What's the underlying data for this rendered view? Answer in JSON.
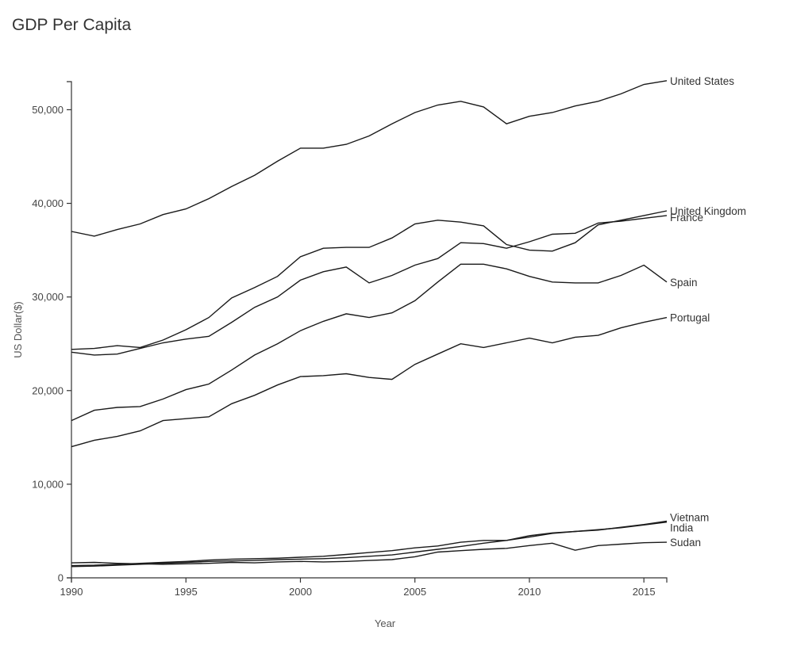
{
  "chart_data": {
    "type": "line",
    "title": "GDP Per Capita",
    "xlabel": "Year",
    "ylabel": "US Dollar($)",
    "xlim": [
      1990,
      2016
    ],
    "ylim": [
      0,
      53000
    ],
    "x_ticks": [
      "1990",
      "1995",
      "2000",
      "2005",
      "2010",
      "2015"
    ],
    "y_ticks": [
      "0",
      "10,000",
      "20,000",
      "30,000",
      "40,000",
      "50,000"
    ],
    "x": [
      1990,
      1991,
      1992,
      1993,
      1994,
      1995,
      1996,
      1997,
      1998,
      1999,
      2000,
      2001,
      2002,
      2003,
      2004,
      2005,
      2006,
      2007,
      2008,
      2009,
      2010,
      2011,
      2012,
      2013,
      2014,
      2015,
      2016
    ],
    "series": [
      {
        "name": "United States",
        "values": [
          37000,
          36500,
          37200,
          37800,
          38800,
          39400,
          40500,
          41800,
          43000,
          44500,
          45900,
          45900,
          46300,
          47200,
          48500,
          49700,
          50500,
          50900,
          50300,
          48500,
          49300,
          49700,
          50400,
          50900,
          51700,
          52700,
          53100
        ]
      },
      {
        "name": "United Kingdom",
        "values": [
          24400,
          24500,
          24800,
          24600,
          25400,
          26500,
          27800,
          29900,
          31000,
          32200,
          34300,
          35200,
          35300,
          35300,
          36300,
          37800,
          38200,
          38000,
          37600,
          35600,
          35000,
          34900,
          35800,
          37700,
          38200,
          38700,
          39200
        ]
      },
      {
        "name": "France",
        "values": [
          24100,
          23800,
          23900,
          24500,
          25100,
          25500,
          25800,
          27300,
          28900,
          30000,
          31800,
          32700,
          33200,
          31500,
          32300,
          33400,
          34100,
          35800,
          35700,
          35200,
          35900,
          36700,
          36800,
          37900,
          38100,
          38400,
          38700
        ]
      },
      {
        "name": "Spain",
        "values": [
          16800,
          17900,
          18200,
          18300,
          19100,
          20100,
          20700,
          22200,
          23800,
          25000,
          26400,
          27400,
          28200,
          27800,
          28300,
          29600,
          31600,
          33500,
          33500,
          33000,
          32200,
          31600,
          31500,
          31500,
          32300,
          33400,
          31600
        ]
      },
      {
        "name": "Portugal",
        "values": [
          14000,
          14700,
          15100,
          15700,
          16800,
          17000,
          17200,
          18600,
          19500,
          20600,
          21500,
          21600,
          21800,
          21400,
          21200,
          22800,
          23900,
          25000,
          24600,
          25100,
          25600,
          25100,
          25700,
          25900,
          26700,
          27300,
          27800
        ]
      },
      {
        "name": "Vietnam",
        "values": [
          1300,
          1350,
          1450,
          1550,
          1650,
          1750,
          1900,
          2000,
          2050,
          2100,
          2200,
          2300,
          2500,
          2700,
          2900,
          3200,
          3400,
          3800,
          4000,
          4000,
          4500,
          4800,
          4950,
          5100,
          5400,
          5700,
          6050
        ]
      },
      {
        "name": "India",
        "values": [
          1200,
          1250,
          1350,
          1450,
          1550,
          1650,
          1750,
          1800,
          1850,
          1950,
          2000,
          2050,
          2150,
          2300,
          2450,
          2750,
          3050,
          3350,
          3700,
          4000,
          4350,
          4750,
          4950,
          5150,
          5350,
          5650,
          5950
        ]
      },
      {
        "name": "Sudan",
        "values": [
          1600,
          1650,
          1550,
          1500,
          1450,
          1500,
          1550,
          1650,
          1600,
          1700,
          1750,
          1700,
          1750,
          1850,
          1950,
          2250,
          2750,
          2900,
          3050,
          3150,
          3450,
          3700,
          2950,
          3450,
          3600,
          3750,
          3800
        ]
      }
    ]
  }
}
